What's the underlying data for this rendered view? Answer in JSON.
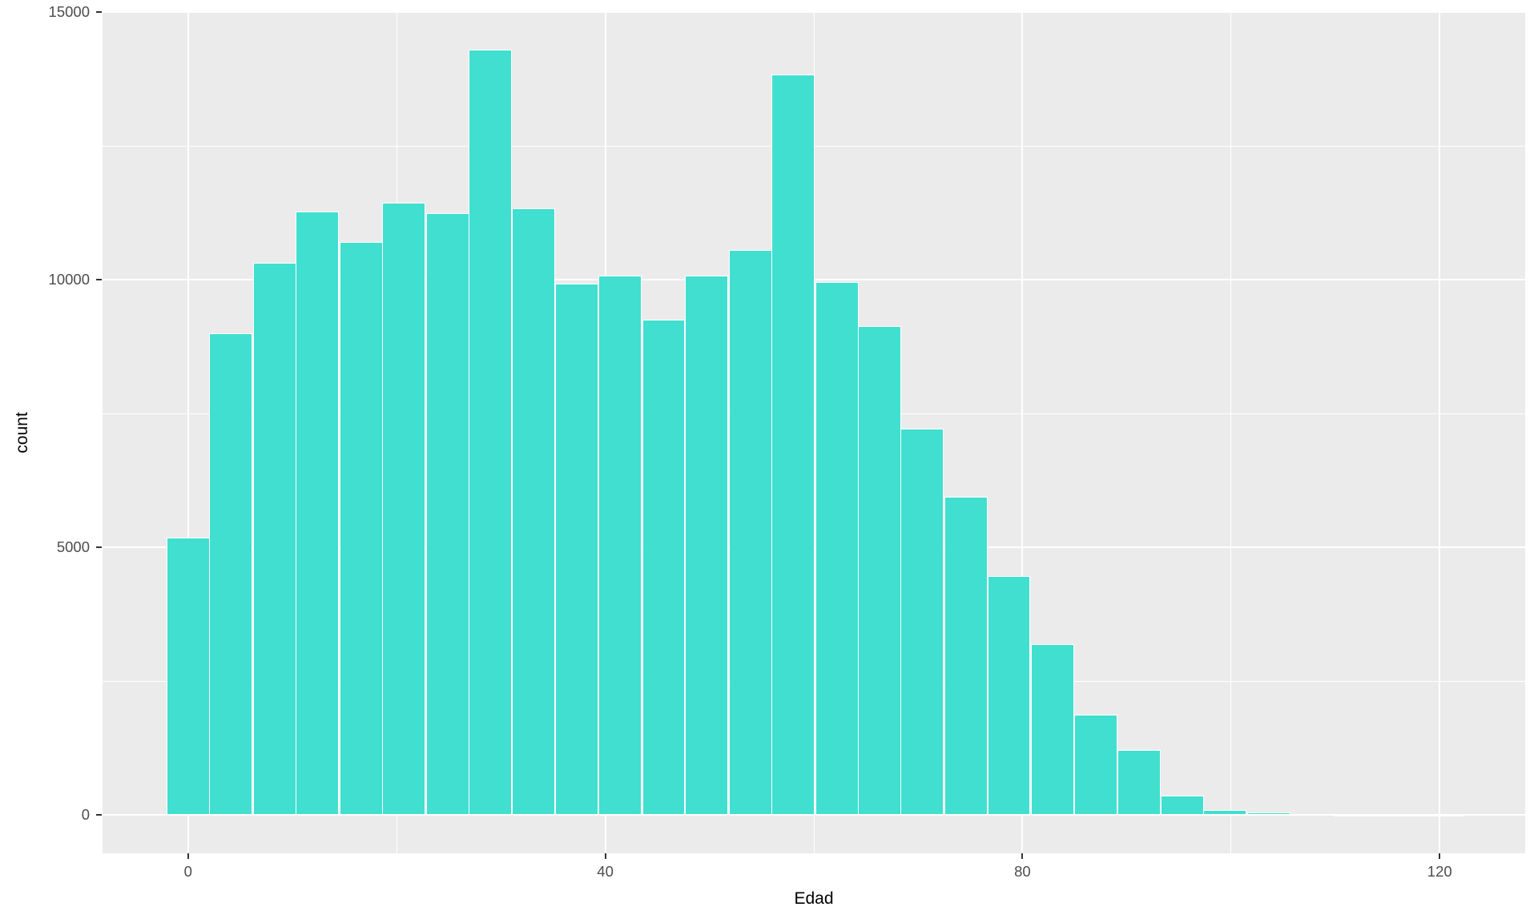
{
  "chart_data": {
    "type": "bar",
    "subtype": "histogram",
    "title": "",
    "xlabel": "Edad",
    "ylabel": "count",
    "legend": "none",
    "grid": "white major and minor gridlines on grey panel",
    "xlim": [
      -8.2,
      128.2
    ],
    "ylim": [
      -715,
      15015
    ],
    "x_ticks": [
      0,
      40,
      80,
      120
    ],
    "y_ticks": [
      0,
      5000,
      10000,
      15000
    ],
    "x_minor_ticks": [
      20,
      60,
      100
    ],
    "y_minor_ticks": [
      2500,
      7500,
      12500
    ],
    "binwidth": 4.1435,
    "bins": [
      {
        "center": 0.0,
        "count": 5180
      },
      {
        "center": 4.1,
        "count": 9000
      },
      {
        "center": 8.3,
        "count": 10320
      },
      {
        "center": 12.4,
        "count": 11270
      },
      {
        "center": 16.6,
        "count": 10700
      },
      {
        "center": 20.7,
        "count": 11440
      },
      {
        "center": 24.9,
        "count": 11240
      },
      {
        "center": 29.0,
        "count": 14300
      },
      {
        "center": 33.1,
        "count": 11340
      },
      {
        "center": 37.3,
        "count": 9920
      },
      {
        "center": 41.4,
        "count": 10080
      },
      {
        "center": 45.6,
        "count": 9260
      },
      {
        "center": 49.7,
        "count": 10070
      },
      {
        "center": 53.9,
        "count": 10550
      },
      {
        "center": 58.0,
        "count": 13840
      },
      {
        "center": 62.2,
        "count": 9960
      },
      {
        "center": 66.3,
        "count": 9140
      },
      {
        "center": 70.4,
        "count": 7210
      },
      {
        "center": 74.6,
        "count": 5940
      },
      {
        "center": 78.7,
        "count": 4470
      },
      {
        "center": 82.9,
        "count": 3190
      },
      {
        "center": 87.0,
        "count": 1870
      },
      {
        "center": 91.2,
        "count": 1210
      },
      {
        "center": 95.3,
        "count": 360
      },
      {
        "center": 99.4,
        "count": 90
      },
      {
        "center": 103.6,
        "count": 45
      },
      {
        "center": 107.7,
        "count": 20
      },
      {
        "center": 111.9,
        "count": 10
      },
      {
        "center": 116.0,
        "count": 5
      },
      {
        "center": 120.2,
        "count": 3
      }
    ],
    "colors": {
      "bar_fill": "#40DFD0",
      "bar_stroke": "#ffffff",
      "panel_bg": "#ebebeb",
      "gridline": "#ffffff",
      "tick_label": "#4d4d4d",
      "tick_mark": "#333333",
      "axis_title": "#000000",
      "page_bg": "#ffffff"
    }
  }
}
